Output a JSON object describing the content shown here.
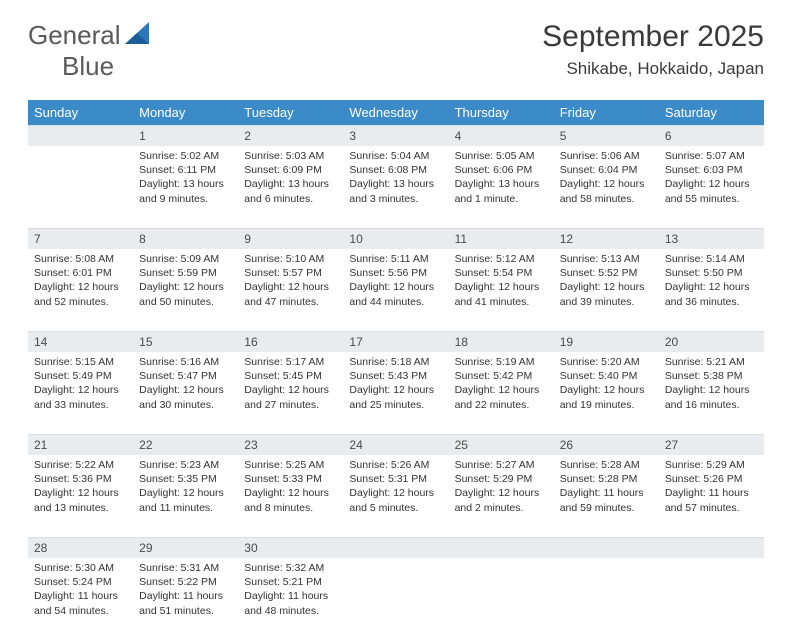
{
  "brand": {
    "part1": "General",
    "part2": "Blue"
  },
  "title": "September 2025",
  "location": "Shikabe, Hokkaido, Japan",
  "colors": {
    "header_bg": "#3b8bc9",
    "header_text": "#ffffff",
    "daynum_bg": "#e9ecef",
    "text": "#333333",
    "logo_gray": "#5a5a5a",
    "logo_blue": "#2f77bb"
  },
  "weekdays": [
    "Sunday",
    "Monday",
    "Tuesday",
    "Wednesday",
    "Thursday",
    "Friday",
    "Saturday"
  ],
  "weeks": [
    [
      null,
      {
        "n": "1",
        "sr": "Sunrise: 5:02 AM",
        "ss": "Sunset: 6:11 PM",
        "dl": "Daylight: 13 hours and 9 minutes."
      },
      {
        "n": "2",
        "sr": "Sunrise: 5:03 AM",
        "ss": "Sunset: 6:09 PM",
        "dl": "Daylight: 13 hours and 6 minutes."
      },
      {
        "n": "3",
        "sr": "Sunrise: 5:04 AM",
        "ss": "Sunset: 6:08 PM",
        "dl": "Daylight: 13 hours and 3 minutes."
      },
      {
        "n": "4",
        "sr": "Sunrise: 5:05 AM",
        "ss": "Sunset: 6:06 PM",
        "dl": "Daylight: 13 hours and 1 minute."
      },
      {
        "n": "5",
        "sr": "Sunrise: 5:06 AM",
        "ss": "Sunset: 6:04 PM",
        "dl": "Daylight: 12 hours and 58 minutes."
      },
      {
        "n": "6",
        "sr": "Sunrise: 5:07 AM",
        "ss": "Sunset: 6:03 PM",
        "dl": "Daylight: 12 hours and 55 minutes."
      }
    ],
    [
      {
        "n": "7",
        "sr": "Sunrise: 5:08 AM",
        "ss": "Sunset: 6:01 PM",
        "dl": "Daylight: 12 hours and 52 minutes."
      },
      {
        "n": "8",
        "sr": "Sunrise: 5:09 AM",
        "ss": "Sunset: 5:59 PM",
        "dl": "Daylight: 12 hours and 50 minutes."
      },
      {
        "n": "9",
        "sr": "Sunrise: 5:10 AM",
        "ss": "Sunset: 5:57 PM",
        "dl": "Daylight: 12 hours and 47 minutes."
      },
      {
        "n": "10",
        "sr": "Sunrise: 5:11 AM",
        "ss": "Sunset: 5:56 PM",
        "dl": "Daylight: 12 hours and 44 minutes."
      },
      {
        "n": "11",
        "sr": "Sunrise: 5:12 AM",
        "ss": "Sunset: 5:54 PM",
        "dl": "Daylight: 12 hours and 41 minutes."
      },
      {
        "n": "12",
        "sr": "Sunrise: 5:13 AM",
        "ss": "Sunset: 5:52 PM",
        "dl": "Daylight: 12 hours and 39 minutes."
      },
      {
        "n": "13",
        "sr": "Sunrise: 5:14 AM",
        "ss": "Sunset: 5:50 PM",
        "dl": "Daylight: 12 hours and 36 minutes."
      }
    ],
    [
      {
        "n": "14",
        "sr": "Sunrise: 5:15 AM",
        "ss": "Sunset: 5:49 PM",
        "dl": "Daylight: 12 hours and 33 minutes."
      },
      {
        "n": "15",
        "sr": "Sunrise: 5:16 AM",
        "ss": "Sunset: 5:47 PM",
        "dl": "Daylight: 12 hours and 30 minutes."
      },
      {
        "n": "16",
        "sr": "Sunrise: 5:17 AM",
        "ss": "Sunset: 5:45 PM",
        "dl": "Daylight: 12 hours and 27 minutes."
      },
      {
        "n": "17",
        "sr": "Sunrise: 5:18 AM",
        "ss": "Sunset: 5:43 PM",
        "dl": "Daylight: 12 hours and 25 minutes."
      },
      {
        "n": "18",
        "sr": "Sunrise: 5:19 AM",
        "ss": "Sunset: 5:42 PM",
        "dl": "Daylight: 12 hours and 22 minutes."
      },
      {
        "n": "19",
        "sr": "Sunrise: 5:20 AM",
        "ss": "Sunset: 5:40 PM",
        "dl": "Daylight: 12 hours and 19 minutes."
      },
      {
        "n": "20",
        "sr": "Sunrise: 5:21 AM",
        "ss": "Sunset: 5:38 PM",
        "dl": "Daylight: 12 hours and 16 minutes."
      }
    ],
    [
      {
        "n": "21",
        "sr": "Sunrise: 5:22 AM",
        "ss": "Sunset: 5:36 PM",
        "dl": "Daylight: 12 hours and 13 minutes."
      },
      {
        "n": "22",
        "sr": "Sunrise: 5:23 AM",
        "ss": "Sunset: 5:35 PM",
        "dl": "Daylight: 12 hours and 11 minutes."
      },
      {
        "n": "23",
        "sr": "Sunrise: 5:25 AM",
        "ss": "Sunset: 5:33 PM",
        "dl": "Daylight: 12 hours and 8 minutes."
      },
      {
        "n": "24",
        "sr": "Sunrise: 5:26 AM",
        "ss": "Sunset: 5:31 PM",
        "dl": "Daylight: 12 hours and 5 minutes."
      },
      {
        "n": "25",
        "sr": "Sunrise: 5:27 AM",
        "ss": "Sunset: 5:29 PM",
        "dl": "Daylight: 12 hours and 2 minutes."
      },
      {
        "n": "26",
        "sr": "Sunrise: 5:28 AM",
        "ss": "Sunset: 5:28 PM",
        "dl": "Daylight: 11 hours and 59 minutes."
      },
      {
        "n": "27",
        "sr": "Sunrise: 5:29 AM",
        "ss": "Sunset: 5:26 PM",
        "dl": "Daylight: 11 hours and 57 minutes."
      }
    ],
    [
      {
        "n": "28",
        "sr": "Sunrise: 5:30 AM",
        "ss": "Sunset: 5:24 PM",
        "dl": "Daylight: 11 hours and 54 minutes."
      },
      {
        "n": "29",
        "sr": "Sunrise: 5:31 AM",
        "ss": "Sunset: 5:22 PM",
        "dl": "Daylight: 11 hours and 51 minutes."
      },
      {
        "n": "30",
        "sr": "Sunrise: 5:32 AM",
        "ss": "Sunset: 5:21 PM",
        "dl": "Daylight: 11 hours and 48 minutes."
      },
      null,
      null,
      null,
      null
    ]
  ]
}
